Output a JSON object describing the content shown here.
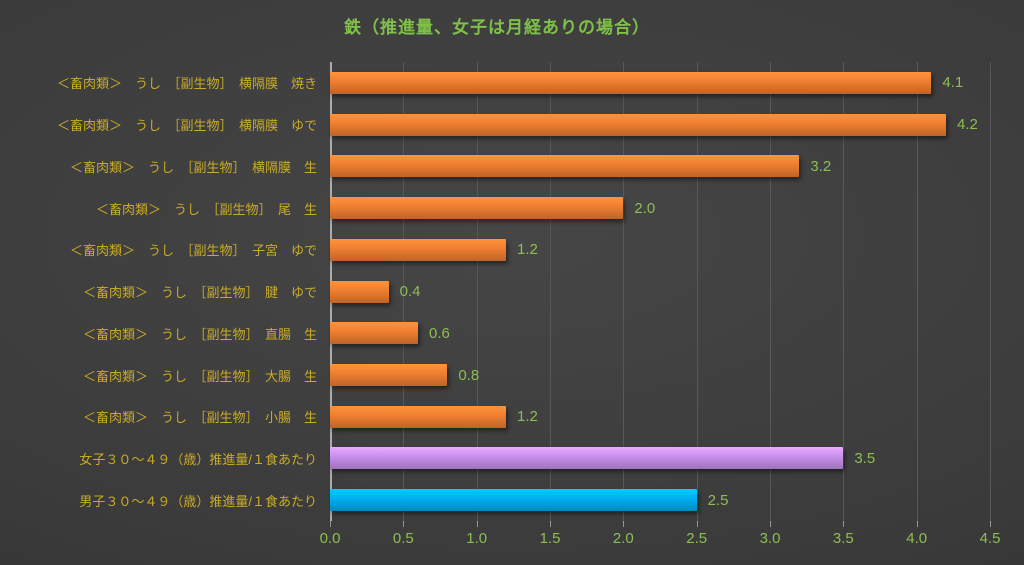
{
  "chart_data": {
    "type": "bar",
    "orientation": "horizontal",
    "title": "鉄（推進量、女子は月経ありの場合）",
    "categories": [
      "＜畜肉類＞　うし　［副生物］　横隔膜　焼き",
      "＜畜肉類＞　うし　［副生物］　横隔膜　ゆで",
      "＜畜肉類＞　うし　［副生物］　横隔膜　生",
      "＜畜肉類＞　うし　［副生物］　尾　生",
      "＜畜肉類＞　うし　［副生物］　子宮　ゆで",
      "＜畜肉類＞　うし　［副生物］　腱　ゆで",
      "＜畜肉類＞　うし　［副生物］　直腸　生",
      "＜畜肉類＞　うし　［副生物］　大腸　生",
      "＜畜肉類＞　うし　［副生物］　小腸　生",
      "女子３０～４９（歳）推進量/１食あたり",
      "男子３０～４９（歳）推進量/１食あたり"
    ],
    "values": [
      4.1,
      4.2,
      3.2,
      2.0,
      1.2,
      0.4,
      0.6,
      0.8,
      1.2,
      3.5,
      2.5
    ],
    "value_labels": [
      "4.1",
      "4.2",
      "3.2",
      "2.0",
      "1.2",
      "0.4",
      "0.6",
      "0.8",
      "1.2",
      "3.5",
      "2.5"
    ],
    "bar_colors": [
      "#ED7D31",
      "#ED7D31",
      "#ED7D31",
      "#ED7D31",
      "#ED7D31",
      "#ED7D31",
      "#ED7D31",
      "#ED7D31",
      "#ED7D31",
      "#C68FEA",
      "#00AEEF"
    ],
    "xlim": [
      0,
      4.5
    ],
    "xticks": [
      "0.0",
      "0.5",
      "1.0",
      "1.5",
      "2.0",
      "2.5",
      "3.0",
      "3.5",
      "4.0",
      "4.5"
    ],
    "grid": "vertical-on",
    "legend": "none",
    "xlabel": "",
    "ylabel": ""
  },
  "colors": {
    "background_center": "#464646",
    "background_edge": "#262626",
    "title_text": "#7FC148",
    "category_text": "#C9AC25",
    "value_text": "#8CBF52",
    "tick_text": "#8CBF52",
    "gridline": "#585858",
    "axis_line": "#ACACAC"
  }
}
